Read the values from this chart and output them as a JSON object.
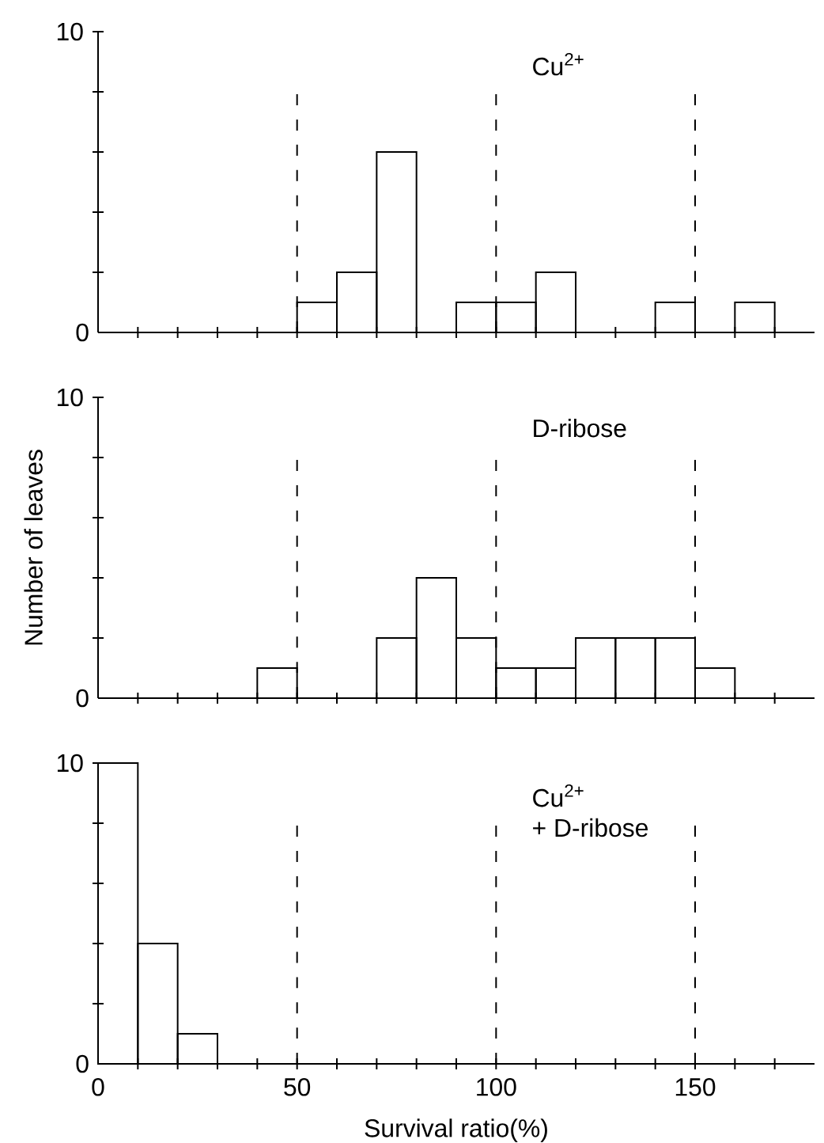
{
  "chart_data": [
    {
      "type": "histogram",
      "bins": [
        0,
        10,
        20,
        30,
        40,
        50,
        60,
        70,
        80,
        90,
        100,
        110,
        120,
        130,
        140,
        150,
        160,
        170,
        180
      ],
      "values": [
        0,
        0,
        0,
        0,
        0,
        1,
        2,
        6,
        0,
        1,
        1,
        2,
        0,
        0,
        1,
        0,
        1,
        0
      ],
      "color": "#000000",
      "xlim": [
        0,
        180
      ],
      "ylim": [
        0,
        10
      ],
      "xticks": [
        0,
        {
          "value": 10,
          "label": null
        },
        {
          "value": 20,
          "label": null
        },
        {
          "value": 30,
          "label": null
        },
        {
          "value": 40,
          "label": null
        },
        50,
        {
          "value": 60,
          "label": null
        },
        {
          "value": 70,
          "label": null
        },
        {
          "value": 80,
          "label": null
        },
        {
          "value": 90,
          "label": null
        },
        100,
        {
          "value": 110,
          "label": null
        },
        {
          "value": 120,
          "label": null
        },
        {
          "value": 130,
          "label": null
        },
        {
          "value": 140,
          "label": null
        },
        150,
        {
          "value": 160,
          "label": null
        },
        {
          "value": 170,
          "label": null
        }
      ],
      "yticks": [
        0,
        {
          "value": 2,
          "label": null
        },
        {
          "value": 4,
          "label": null
        },
        {
          "value": 6,
          "label": null
        },
        {
          "value": 8,
          "label": null
        },
        10
      ],
      "tick_labels": "y",
      "ref_lines": [
        {
          "axis": "x",
          "value": 50,
          "line_style": "dashed"
        },
        {
          "axis": "x",
          "value": 100,
          "line_style": "dashed"
        },
        {
          "axis": "x",
          "value": 150,
          "line_style": "dashed"
        }
      ],
      "annotations": [
        "Cu$^{2+}$"
      ]
    },
    {
      "type": "histogram",
      "bins": [
        0,
        10,
        20,
        30,
        40,
        50,
        60,
        70,
        80,
        90,
        100,
        110,
        120,
        130,
        140,
        150,
        160,
        170,
        180
      ],
      "values": [
        0,
        0,
        0,
        0,
        1,
        0,
        0,
        2,
        4,
        2,
        1,
        1,
        2,
        2,
        2,
        1,
        0,
        0
      ],
      "color": "#000000",
      "xlim": [
        0,
        180
      ],
      "ylim": [
        0,
        10
      ],
      "xticks": [
        0,
        {
          "value": 10,
          "label": null
        },
        {
          "value": 20,
          "label": null
        },
        {
          "value": 30,
          "label": null
        },
        {
          "value": 40,
          "label": null
        },
        50,
        {
          "value": 60,
          "label": null
        },
        {
          "value": 70,
          "label": null
        },
        {
          "value": 80,
          "label": null
        },
        {
          "value": 90,
          "label": null
        },
        100,
        {
          "value": 110,
          "label": null
        },
        {
          "value": 120,
          "label": null
        },
        {
          "value": 130,
          "label": null
        },
        {
          "value": 140,
          "label": null
        },
        150,
        {
          "value": 160,
          "label": null
        },
        {
          "value": 170,
          "label": null
        }
      ],
      "yticks": [
        0,
        {
          "value": 2,
          "label": null
        },
        {
          "value": 4,
          "label": null
        },
        {
          "value": 6,
          "label": null
        },
        {
          "value": 8,
          "label": null
        },
        10
      ],
      "tick_labels": "y",
      "ylabel": "Number of leaves",
      "ref_lines": [
        {
          "axis": "x",
          "value": 50,
          "line_style": "dashed"
        },
        {
          "axis": "x",
          "value": 100,
          "line_style": "dashed"
        },
        {
          "axis": "x",
          "value": 150,
          "line_style": "dashed"
        }
      ],
      "annotations": [
        "D-ribose"
      ]
    },
    {
      "type": "histogram",
      "bins": [
        0,
        10,
        20,
        30,
        40,
        50,
        60,
        70,
        80,
        90,
        100,
        110,
        120,
        130,
        140,
        150,
        160,
        170,
        180
      ],
      "values": [
        10,
        4,
        1,
        0,
        0,
        0,
        0,
        0,
        0,
        0,
        0,
        0,
        0,
        0,
        0,
        0,
        0,
        0
      ],
      "color": "#000000",
      "xlim": [
        0,
        180
      ],
      "ylim": [
        0,
        10
      ],
      "xticks": [
        0,
        {
          "value": 10,
          "label": null
        },
        {
          "value": 20,
          "label": null
        },
        {
          "value": 30,
          "label": null
        },
        {
          "value": 40,
          "label": null
        },
        50,
        {
          "value": 60,
          "label": null
        },
        {
          "value": 70,
          "label": null
        },
        {
          "value": 80,
          "label": null
        },
        {
          "value": 90,
          "label": null
        },
        100,
        {
          "value": 110,
          "label": null
        },
        {
          "value": 120,
          "label": null
        },
        {
          "value": 130,
          "label": null
        },
        {
          "value": 140,
          "label": null
        },
        150,
        {
          "value": 160,
          "label": null
        },
        {
          "value": 170,
          "label": null
        }
      ],
      "yticks": [
        0,
        {
          "value": 2,
          "label": null
        },
        {
          "value": 4,
          "label": null
        },
        {
          "value": 6,
          "label": null
        },
        {
          "value": 8,
          "label": null
        },
        10
      ],
      "xlabel": "Survival ratio(%)",
      "ref_lines": [
        {
          "axis": "x",
          "value": 50,
          "line_style": "dashed"
        },
        {
          "axis": "x",
          "value": 100,
          "line_style": "dashed"
        },
        {
          "axis": "x",
          "value": 150,
          "line_style": "dashed"
        }
      ],
      "annotations": [
        "Cu$^{2+}$",
        "+ D-ribose"
      ]
    }
  ]
}
